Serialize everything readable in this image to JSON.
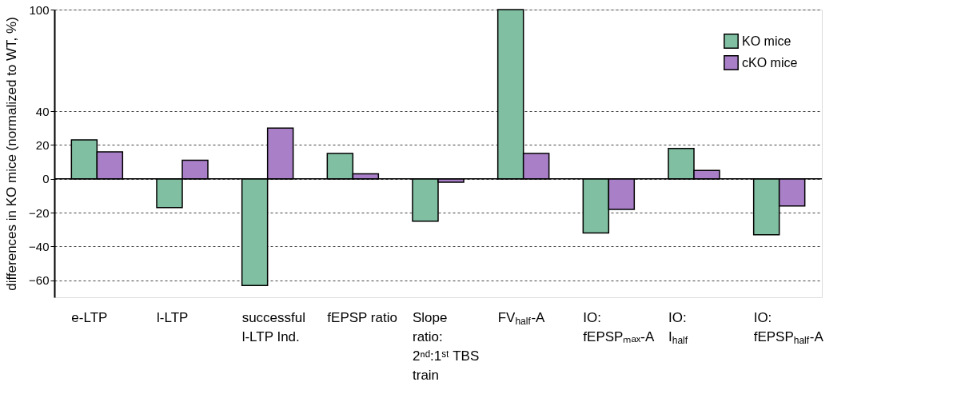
{
  "chart_data": {
    "type": "bar",
    "ylabel": "differences in KO mice (normalized to WT, %)",
    "categories": [
      "e-LTP",
      "l-LTP",
      "successful l-LTP Ind.",
      "fEPSP ratio",
      "Slope ratio: 2ⁿᵈ:1ˢᵗ TBS train",
      "FV$_{half}$-A",
      "IO: fEPSPₘₐₓ-A",
      "IO: I$_{half}$",
      "IO: fEPSP$_{half}$-A"
    ],
    "series": [
      {
        "name": "KO mice",
        "color": "#80bfa1",
        "values": [
          23,
          -17,
          -63,
          15,
          -25,
          100,
          -32,
          18,
          -33
        ]
      },
      {
        "name": "cKO mice",
        "color": "#a97fc8",
        "values": [
          16,
          11,
          30,
          3,
          -2,
          15,
          -18,
          5,
          -16
        ]
      }
    ],
    "ylim": [
      -70,
      100
    ],
    "yticks": [
      -60,
      -40,
      -20,
      0,
      20,
      40,
      100
    ],
    "ref_lines": [
      {
        "axis": "y",
        "value": 0
      }
    ],
    "grid": "y",
    "legend": "top right"
  }
}
